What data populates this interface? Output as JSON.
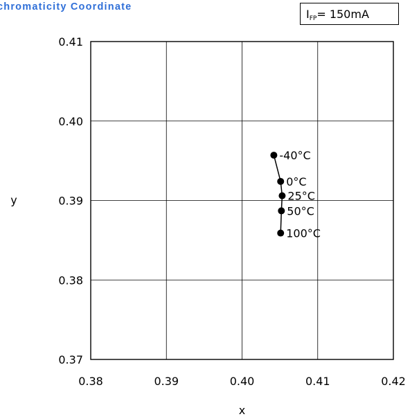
{
  "header": {
    "title": "chromaticity Coordinate",
    "condition_symbol": "I",
    "condition_subscript": "FP",
    "condition_value": "= 150mA"
  },
  "chart_data": {
    "type": "line",
    "title": "",
    "xlabel": "x",
    "ylabel": "y",
    "xlim": [
      0.38,
      0.42
    ],
    "ylim": [
      0.37,
      0.41
    ],
    "x_ticks": [
      "0.38",
      "0.39",
      "0.40",
      "0.41",
      "0.42"
    ],
    "y_ticks": [
      "0.41",
      "0.40",
      "0.39",
      "0.38",
      "0.37"
    ],
    "grid": true,
    "series": [
      {
        "points": [
          {
            "x": 0.4042,
            "y": 0.3957,
            "label": "-40°C"
          },
          {
            "x": 0.4051,
            "y": 0.3924,
            "label": "0°C"
          },
          {
            "x": 0.4053,
            "y": 0.3906,
            "label": "25°C"
          },
          {
            "x": 0.4052,
            "y": 0.3887,
            "label": "50°C"
          },
          {
            "x": 0.4051,
            "y": 0.3859,
            "label": "100°C"
          }
        ],
        "color": "#000000"
      }
    ]
  }
}
